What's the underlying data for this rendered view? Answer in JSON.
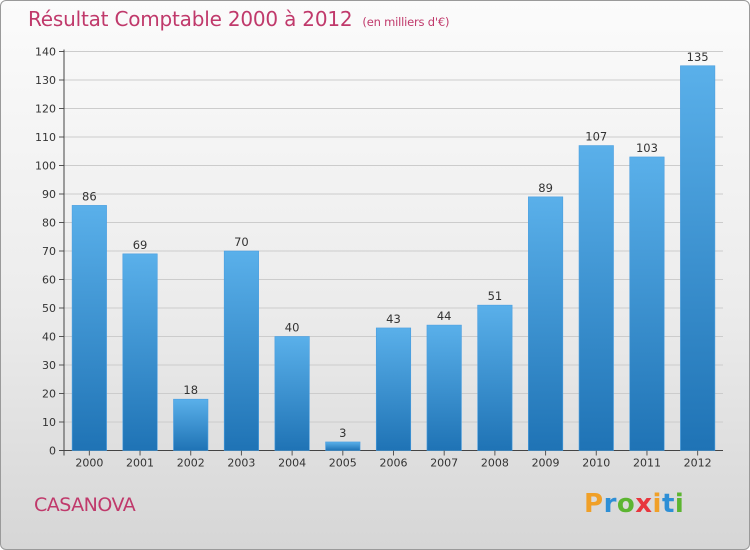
{
  "title": "Résultat Comptable 2000 à 2012",
  "unit": "(en milliers d'€)",
  "commune": "CASANOVA",
  "logo": {
    "letters": [
      "P",
      "r",
      "o",
      "x",
      "i",
      "t",
      "i"
    ],
    "colors": [
      "#f0a028",
      "#2d8fd6",
      "#5cb531",
      "#e8363d",
      "#f0a028",
      "#2d8fd6",
      "#5cb531"
    ]
  },
  "colors": {
    "bar_top": "#5ab0ea",
    "bar_bottom": "#1f73b5",
    "title": "#c0396b",
    "grid": "#cccccc"
  },
  "chart_data": {
    "type": "bar",
    "categories": [
      "2000",
      "2001",
      "2002",
      "2003",
      "2004",
      "2005",
      "2006",
      "2007",
      "2008",
      "2009",
      "2010",
      "2011",
      "2012"
    ],
    "values": [
      86,
      69,
      18,
      70,
      40,
      3,
      43,
      44,
      51,
      89,
      107,
      103,
      135
    ],
    "title": "Résultat Comptable 2000 à 2012",
    "xlabel": "",
    "ylabel": "",
    "ylim": [
      0,
      140
    ],
    "yticks": [
      0,
      10,
      20,
      30,
      40,
      50,
      60,
      70,
      80,
      90,
      100,
      110,
      120,
      130,
      140
    ],
    "grid": true
  }
}
